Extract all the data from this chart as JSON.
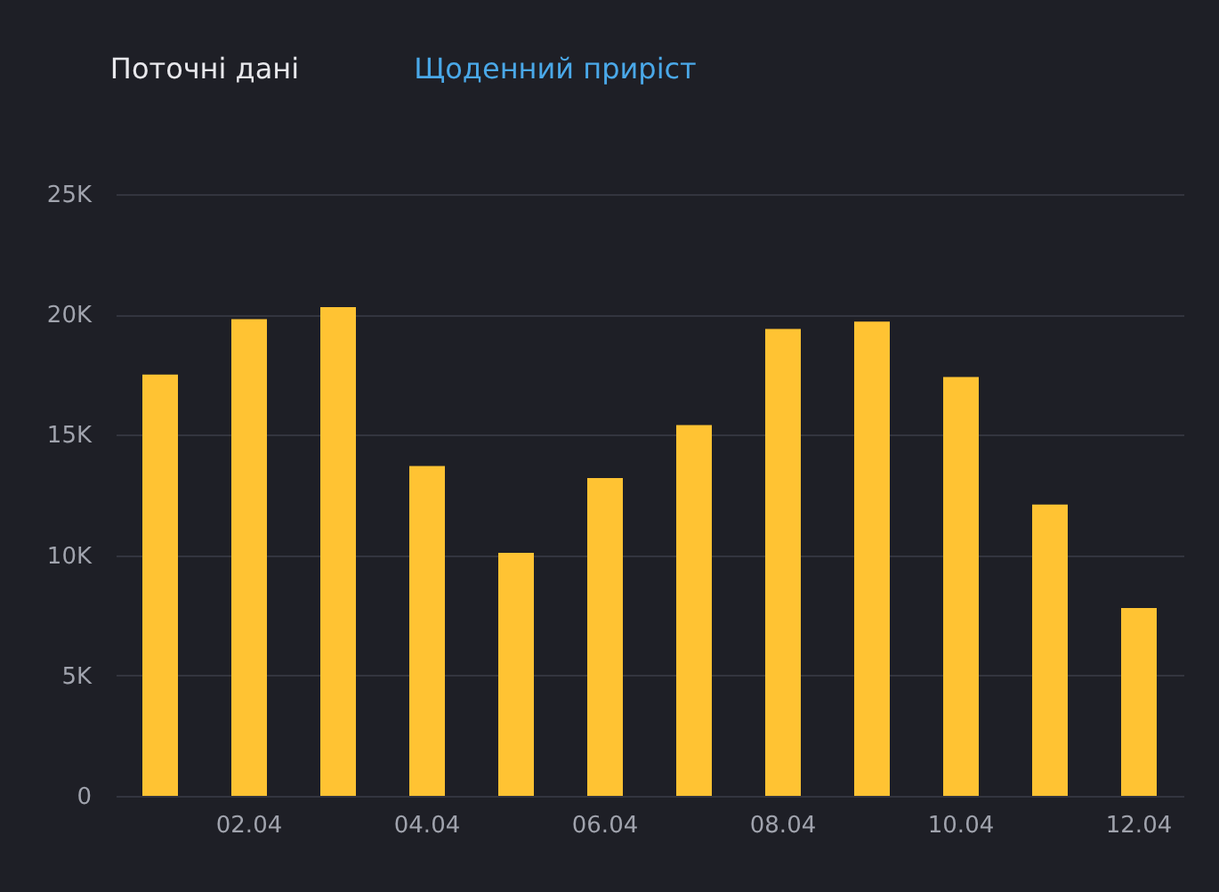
{
  "chart_data": {
    "type": "bar",
    "annotations": [
      "Поточні дані",
      "Щоденний приріст"
    ],
    "categories": [
      null,
      "02.04",
      null,
      "04.04",
      null,
      "06.04",
      null,
      "08.04",
      null,
      "10.04",
      null,
      "12.04"
    ],
    "values": [
      17500,
      19800,
      20300,
      13700,
      10100,
      13200,
      15400,
      19400,
      19700,
      17400,
      12100,
      7800
    ],
    "color": "#ffc333",
    "ylim": [
      0,
      25000
    ],
    "yticks": [
      0,
      {
        "value": 5000,
        "label": "5K"
      },
      {
        "value": 10000,
        "label": "10K"
      },
      {
        "value": 15000,
        "label": "15K"
      },
      {
        "value": 20000,
        "label": "20K"
      },
      {
        "value": 25000,
        "label": "25K"
      }
    ],
    "grid": "y"
  }
}
